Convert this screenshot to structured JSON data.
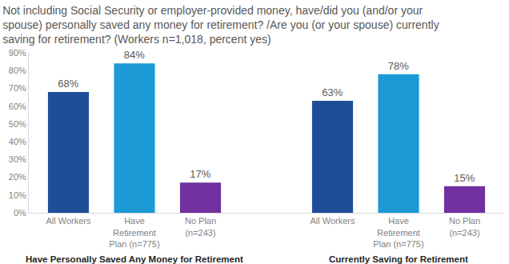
{
  "chart_data": {
    "type": "bar",
    "title": "Not including Social Security or employer-provided money, have/did you (and/or your spouse) personally saved any money for retirement? /Are you (or your spouse) currently saving for retirement? (Workers n=1,018, percent yes)",
    "categories": [
      "All Workers",
      "Have Retirement Plan (n=775)",
      "No Plan (n=243)",
      null,
      "All Workers",
      "Have Retirement Plan (n=775)",
      "No Plan (n=243)"
    ],
    "values": [
      68,
      84,
      17,
      null,
      63,
      78,
      15
    ],
    "value_labels": [
      "68%",
      "84%",
      "17%",
      null,
      "63%",
      "78%",
      "15%"
    ],
    "colors": [
      "#1f4e96",
      "#1b9ad6",
      "#7030a0",
      null,
      "#1f4e96",
      "#1b9ad6",
      "#7030a0"
    ],
    "data_labels": true,
    "grid": false,
    "ylim": [
      0,
      90
    ],
    "yticks": [
      {
        "value": 0,
        "label": "0%"
      },
      {
        "value": 10,
        "label": "10%"
      },
      {
        "value": 20,
        "label": "20%"
      },
      {
        "value": 30,
        "label": "30%"
      },
      {
        "value": 40,
        "label": "40%"
      },
      {
        "value": 50,
        "label": "50%"
      },
      {
        "value": 60,
        "label": "60%"
      },
      {
        "value": 70,
        "label": "70%"
      },
      {
        "value": 80,
        "label": "80%"
      },
      {
        "value": 90,
        "label": "90%"
      }
    ],
    "annotations": [
      "Have Personally Saved Any Money for Retirement",
      "Currently Saving for Retirement"
    ]
  }
}
